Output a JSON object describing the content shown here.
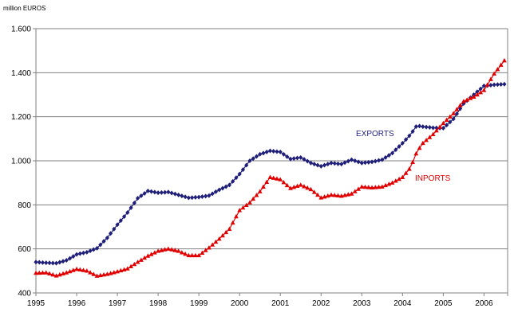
{
  "chart_data": {
    "type": "line",
    "unit_label": "million EUROS",
    "xlim": [
      1995,
      2006.58
    ],
    "ylim": [
      400,
      1600
    ],
    "x_ticks": [
      "1995",
      "1996",
      "1997",
      "1998",
      "1999",
      "2000",
      "2001",
      "2002",
      "2003",
      "2004",
      "2005",
      "2006"
    ],
    "y_ticks": [
      "400",
      "600",
      "800",
      "1.000",
      "1.200",
      "1.400",
      "1.600"
    ],
    "y_tick_values": [
      400,
      600,
      800,
      1000,
      1200,
      1400,
      1600
    ],
    "grid": "horizontal",
    "series": [
      {
        "name": "EXPORTS",
        "color": "#1f1f7a",
        "marker": "diamond",
        "points": [
          [
            1995.0,
            540
          ],
          [
            1995.25,
            537
          ],
          [
            1995.5,
            535
          ],
          [
            1995.75,
            548
          ],
          [
            1996.0,
            575
          ],
          [
            1996.25,
            585
          ],
          [
            1996.5,
            603
          ],
          [
            1996.75,
            650
          ],
          [
            1997.0,
            710
          ],
          [
            1997.25,
            765
          ],
          [
            1997.5,
            830
          ],
          [
            1997.75,
            863
          ],
          [
            1998.0,
            855
          ],
          [
            1998.25,
            858
          ],
          [
            1998.5,
            845
          ],
          [
            1998.75,
            832
          ],
          [
            1999.0,
            835
          ],
          [
            1999.25,
            842
          ],
          [
            1999.5,
            868
          ],
          [
            1999.75,
            890
          ],
          [
            2000.0,
            940
          ],
          [
            2000.25,
            1000
          ],
          [
            2000.5,
            1030
          ],
          [
            2000.75,
            1045
          ],
          [
            2001.0,
            1040
          ],
          [
            2001.25,
            1008
          ],
          [
            2001.5,
            1015
          ],
          [
            2001.75,
            990
          ],
          [
            2002.0,
            975
          ],
          [
            2002.25,
            990
          ],
          [
            2002.5,
            985
          ],
          [
            2002.75,
            1005
          ],
          [
            2003.0,
            990
          ],
          [
            2003.25,
            995
          ],
          [
            2003.5,
            1005
          ],
          [
            2003.75,
            1035
          ],
          [
            2004.0,
            1080
          ],
          [
            2004.2,
            1120
          ],
          [
            2004.35,
            1160
          ],
          [
            2004.5,
            1155
          ],
          [
            2004.75,
            1150
          ],
          [
            2005.0,
            1148
          ],
          [
            2005.25,
            1190
          ],
          [
            2005.5,
            1260
          ],
          [
            2005.75,
            1300
          ],
          [
            2006.0,
            1340
          ],
          [
            2006.25,
            1345
          ],
          [
            2006.5,
            1348
          ]
        ]
      },
      {
        "name": "INPORTS",
        "color": "#e00000",
        "marker": "triangle",
        "points": [
          [
            1995.0,
            490
          ],
          [
            1995.25,
            492
          ],
          [
            1995.5,
            478
          ],
          [
            1995.75,
            492
          ],
          [
            1996.0,
            508
          ],
          [
            1996.25,
            500
          ],
          [
            1996.5,
            477
          ],
          [
            1996.75,
            485
          ],
          [
            1997.0,
            497
          ],
          [
            1997.25,
            510
          ],
          [
            1997.5,
            540
          ],
          [
            1997.75,
            568
          ],
          [
            1998.0,
            590
          ],
          [
            1998.25,
            600
          ],
          [
            1998.5,
            590
          ],
          [
            1998.75,
            570
          ],
          [
            1999.0,
            570
          ],
          [
            1999.25,
            605
          ],
          [
            1999.5,
            645
          ],
          [
            1999.75,
            690
          ],
          [
            2000.0,
            775
          ],
          [
            2000.25,
            810
          ],
          [
            2000.5,
            860
          ],
          [
            2000.75,
            925
          ],
          [
            2001.0,
            915
          ],
          [
            2001.25,
            875
          ],
          [
            2001.5,
            890
          ],
          [
            2001.75,
            870
          ],
          [
            2002.0,
            832
          ],
          [
            2002.25,
            845
          ],
          [
            2002.5,
            840
          ],
          [
            2002.75,
            850
          ],
          [
            2003.0,
            882
          ],
          [
            2003.25,
            878
          ],
          [
            2003.5,
            882
          ],
          [
            2003.75,
            900
          ],
          [
            2004.0,
            925
          ],
          [
            2004.2,
            970
          ],
          [
            2004.35,
            1040
          ],
          [
            2004.5,
            1080
          ],
          [
            2004.75,
            1120
          ],
          [
            2005.0,
            1170
          ],
          [
            2005.25,
            1215
          ],
          [
            2005.5,
            1270
          ],
          [
            2005.75,
            1290
          ],
          [
            2006.0,
            1320
          ],
          [
            2006.25,
            1395
          ],
          [
            2006.5,
            1455
          ]
        ]
      }
    ]
  }
}
